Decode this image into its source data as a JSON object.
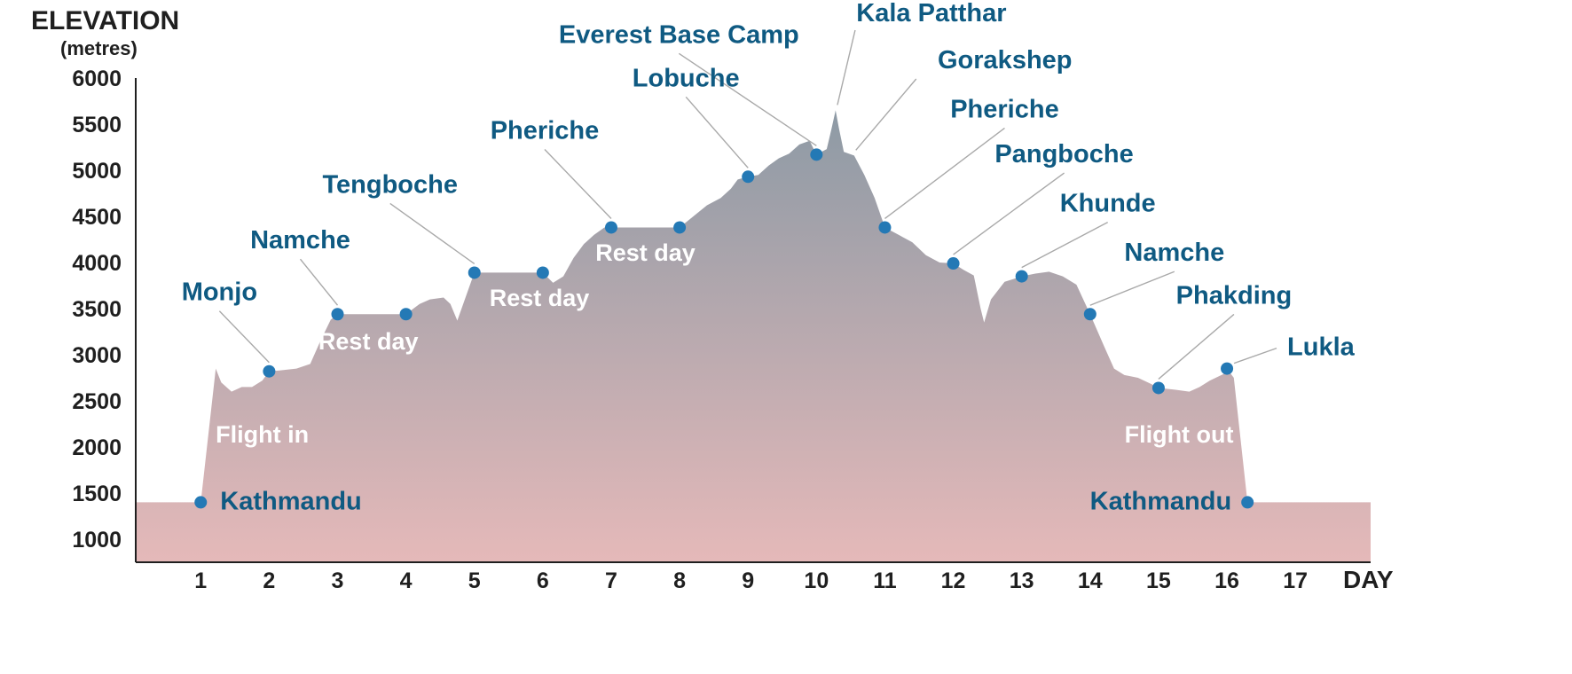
{
  "chart_data": {
    "type": "area",
    "title": "",
    "ylabel": "ELEVATION",
    "ylabel_unit": "(metres)",
    "xlabel": "DAY",
    "ylim": [
      750,
      6000
    ],
    "xlim": [
      0.05,
      18.1
    ],
    "y_ticks": [
      6000,
      5500,
      5000,
      4500,
      4000,
      3500,
      3000,
      2500,
      2000,
      1500,
      1000
    ],
    "x_ticks": [
      1,
      2,
      3,
      4,
      5,
      6,
      7,
      8,
      9,
      10,
      11,
      12,
      13,
      14,
      15,
      16,
      17
    ],
    "gradient_top_color": "#8d9aa5",
    "gradient_bottom_color": "#e5b9b9",
    "label_color": "#0f5a82",
    "dot_color": "#2479b5",
    "profile": [
      [
        0.05,
        1400
      ],
      [
        1.0,
        1400
      ],
      [
        1.22,
        2850
      ],
      [
        1.3,
        2700
      ],
      [
        1.45,
        2600
      ],
      [
        1.6,
        2650
      ],
      [
        1.75,
        2650
      ],
      [
        1.9,
        2720
      ],
      [
        2.0,
        2820
      ],
      [
        2.15,
        2830
      ],
      [
        2.4,
        2850
      ],
      [
        2.6,
        2900
      ],
      [
        2.75,
        3150
      ],
      [
        2.9,
        3380
      ],
      [
        3.0,
        3440
      ],
      [
        4.0,
        3440
      ],
      [
        4.2,
        3550
      ],
      [
        4.35,
        3600
      ],
      [
        4.55,
        3620
      ],
      [
        4.65,
        3550
      ],
      [
        4.75,
        3370
      ],
      [
        4.85,
        3580
      ],
      [
        5.0,
        3890
      ],
      [
        6.0,
        3890
      ],
      [
        6.15,
        3780
      ],
      [
        6.3,
        3850
      ],
      [
        6.45,
        4050
      ],
      [
        6.6,
        4200
      ],
      [
        6.75,
        4300
      ],
      [
        6.9,
        4380
      ],
      [
        8.0,
        4380
      ],
      [
        8.2,
        4500
      ],
      [
        8.4,
        4620
      ],
      [
        8.6,
        4700
      ],
      [
        8.75,
        4800
      ],
      [
        8.85,
        4900
      ],
      [
        9.0,
        4930
      ],
      [
        9.15,
        4950
      ],
      [
        9.3,
        5050
      ],
      [
        9.45,
        5130
      ],
      [
        9.6,
        5180
      ],
      [
        9.75,
        5280
      ],
      [
        9.9,
        5320
      ],
      [
        10.0,
        5170
      ],
      [
        10.15,
        5230
      ],
      [
        10.22,
        5450
      ],
      [
        10.28,
        5650
      ],
      [
        10.33,
        5450
      ],
      [
        10.4,
        5200
      ],
      [
        10.55,
        5160
      ],
      [
        10.7,
        4950
      ],
      [
        10.85,
        4700
      ],
      [
        11.0,
        4380
      ],
      [
        11.2,
        4300
      ],
      [
        11.4,
        4220
      ],
      [
        11.6,
        4080
      ],
      [
        11.8,
        4000
      ],
      [
        12.0,
        3990
      ],
      [
        12.15,
        3920
      ],
      [
        12.3,
        3860
      ],
      [
        12.4,
        3500
      ],
      [
        12.45,
        3350
      ],
      [
        12.55,
        3600
      ],
      [
        12.75,
        3790
      ],
      [
        13.0,
        3850
      ],
      [
        13.2,
        3880
      ],
      [
        13.4,
        3900
      ],
      [
        13.6,
        3850
      ],
      [
        13.8,
        3760
      ],
      [
        14.0,
        3440
      ],
      [
        14.2,
        3100
      ],
      [
        14.35,
        2850
      ],
      [
        14.5,
        2780
      ],
      [
        14.7,
        2750
      ],
      [
        14.9,
        2680
      ],
      [
        15.0,
        2640
      ],
      [
        15.25,
        2620
      ],
      [
        15.45,
        2600
      ],
      [
        15.6,
        2650
      ],
      [
        15.75,
        2720
      ],
      [
        15.95,
        2790
      ],
      [
        16.0,
        2850
      ],
      [
        16.1,
        2750
      ],
      [
        16.3,
        1400
      ],
      [
        18.1,
        1400
      ]
    ],
    "stops": [
      {
        "label": "Kathmandu",
        "x": 1.0,
        "y": 1400,
        "label_side": "right"
      },
      {
        "label": "Monjo",
        "x": 2.0,
        "y": 2820,
        "label_side": "upper-left"
      },
      {
        "label": "Namche",
        "x": 3.0,
        "y": 3440,
        "label_side": "above"
      },
      {
        "label": "",
        "x": 4.0,
        "y": 3440
      },
      {
        "label": "Tengboche",
        "x": 5.0,
        "y": 3890,
        "label_side": "above"
      },
      {
        "label": "",
        "x": 6.0,
        "y": 3890
      },
      {
        "label": "Pheriche",
        "x": 7.0,
        "y": 4380,
        "label_side": "above"
      },
      {
        "label": "",
        "x": 8.0,
        "y": 4380
      },
      {
        "label": "Lobuche",
        "x": 9.0,
        "y": 4930,
        "label_side": "above"
      },
      {
        "label": "Everest Base Camp",
        "x": 10.0,
        "y": 5170,
        "label_side": "above"
      },
      {
        "label": "Pheriche",
        "x": 11.0,
        "y": 4380,
        "label_side": "upper-right"
      },
      {
        "label": "Pangboche",
        "x": 12.0,
        "y": 3990,
        "label_side": "upper-right"
      },
      {
        "label": "Khunde",
        "x": 13.0,
        "y": 3850,
        "label_side": "upper-right"
      },
      {
        "label": "Namche",
        "x": 14.0,
        "y": 3440,
        "label_side": "upper-right"
      },
      {
        "label": "Phakding",
        "x": 15.0,
        "y": 2640,
        "label_side": "upper-right"
      },
      {
        "label": "Lukla",
        "x": 16.0,
        "y": 2850,
        "label_side": "right"
      },
      {
        "label": "Kathmandu",
        "x": 16.3,
        "y": 1400,
        "label_side": "left"
      }
    ],
    "peak_labels": [
      {
        "label": "Kala Patthar",
        "x": 10.28,
        "y": 5650
      },
      {
        "label": "Gorakshep",
        "x": 10.55,
        "y": 5160
      }
    ],
    "annotations": [
      {
        "text": "Flight in",
        "x": 1.9,
        "y": 2050
      },
      {
        "text": "Rest day",
        "x": 3.45,
        "y": 3060
      },
      {
        "text": "Rest day",
        "x": 5.95,
        "y": 3530
      },
      {
        "text": "Rest day",
        "x": 7.5,
        "y": 4020
      },
      {
        "text": "Flight out",
        "x": 15.3,
        "y": 2050
      }
    ]
  }
}
